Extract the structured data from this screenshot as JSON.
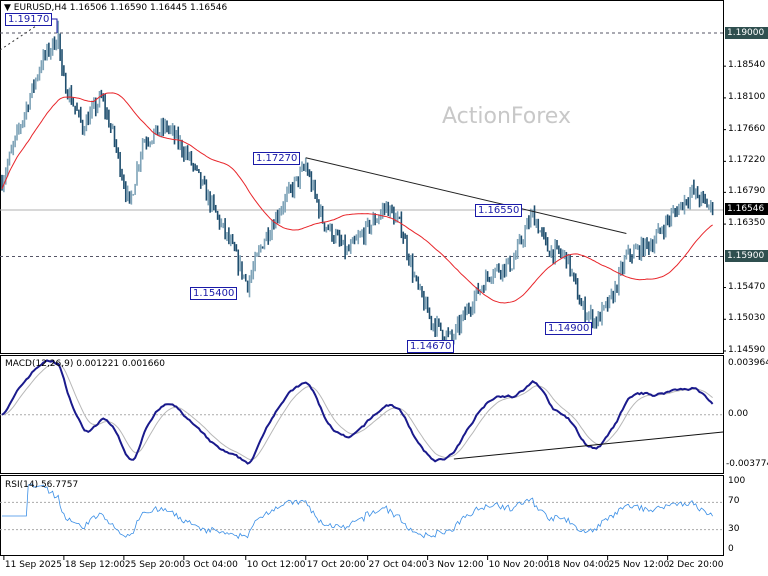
{
  "header": {
    "symbol": "EURUSD,H4",
    "ohlc": "1.16506 1.16590 1.16445 1.16546"
  },
  "watermark": "ActionForex",
  "colors": {
    "bull": "#7fa3b8",
    "bear": "#1f4e6e",
    "ma": "#e8262b",
    "macd": "#1a1a8c",
    "signal": "#b8b8b8",
    "rsi": "#3b8fe6",
    "label_border": "#1a1aa8",
    "level_tag": "#2f4f4f"
  },
  "chart_data": [
    {
      "type": "candlestick",
      "title": "EURUSD,H4",
      "timeframe": "H4",
      "y_ticks": [
        "1.19000",
        "1.18540",
        "1.18100",
        "1.17660",
        "1.17220",
        "1.16790",
        "1.16350",
        "1.15900",
        "1.15470",
        "1.15030",
        "1.14590"
      ],
      "ylim": [
        1.1459,
        1.1925
      ],
      "x_ticks": [
        {
          "bar": 1,
          "label": "11 Sep 2025"
        },
        {
          "bar": 33,
          "label": "18 Sep 12:00"
        },
        {
          "bar": 65,
          "label": "25 Sep 20:00"
        },
        {
          "bar": 97,
          "label": "3 Oct 04:00"
        },
        {
          "bar": 130,
          "label": "10 Oct 12:00"
        },
        {
          "bar": 162,
          "label": "17 Oct 20:00"
        },
        {
          "bar": 195,
          "label": "27 Oct 04:00"
        },
        {
          "bar": 227,
          "label": "3 Nov 12:00"
        },
        {
          "bar": 259,
          "label": "10 Nov 20:00"
        },
        {
          "bar": 291,
          "label": "18 Nov 04:00"
        },
        {
          "bar": 323,
          "label": "25 Nov 12:00"
        },
        {
          "bar": 355,
          "label": "2 Dec 20:00"
        }
      ],
      "approx_close_path": [
        [
          0,
          1.1695
        ],
        [
          21,
          1.186
        ],
        [
          30,
          1.1895
        ],
        [
          32,
          1.184
        ],
        [
          43,
          1.177
        ],
        [
          53,
          1.181
        ],
        [
          59,
          1.176
        ],
        [
          68,
          1.166
        ],
        [
          75,
          1.175
        ],
        [
          88,
          1.177
        ],
        [
          99,
          1.173
        ],
        [
          112,
          1.166
        ],
        [
          123,
          1.16
        ],
        [
          131,
          1.155
        ],
        [
          139,
          1.161
        ],
        [
          149,
          1.166
        ],
        [
          162,
          1.1715
        ],
        [
          171,
          1.164
        ],
        [
          184,
          1.1595
        ],
        [
          205,
          1.166
        ],
        [
          213,
          1.163
        ],
        [
          221,
          1.155
        ],
        [
          229,
          1.15
        ],
        [
          240,
          1.1475
        ],
        [
          251,
          1.153
        ],
        [
          261,
          1.157
        ],
        [
          272,
          1.158
        ],
        [
          283,
          1.165
        ],
        [
          291,
          1.16
        ],
        [
          301,
          1.159
        ],
        [
          309,
          1.152
        ],
        [
          317,
          1.15
        ],
        [
          325,
          1.153
        ],
        [
          333,
          1.159
        ],
        [
          347,
          1.161
        ],
        [
          355,
          1.164
        ],
        [
          368,
          1.168
        ],
        [
          379,
          1.16546
        ]
      ],
      "moving_average": {
        "color": "#e8262b"
      },
      "current_price": "1.16546",
      "levels": [
        "1.19000",
        "1.15900"
      ],
      "annotations": [
        {
          "text": "1.19170",
          "bar": 30,
          "price": 1.1917
        },
        {
          "text": "1.17270",
          "bar": 162,
          "price": 1.1727
        },
        {
          "text": "1.15400",
          "bar": 131,
          "price": 1.154
        },
        {
          "text": "1.16550",
          "bar": 283,
          "price": 1.1655
        },
        {
          "text": "1.14670",
          "bar": 240,
          "price": 1.1467
        },
        {
          "text": "1.14900",
          "bar": 317,
          "price": 1.149
        }
      ],
      "trendline": {
        "from": {
          "bar": 162,
          "price": 1.1727
        },
        "to": {
          "bar": 333,
          "price": 1.1622
        }
      }
    },
    {
      "type": "line",
      "title": "MACD(12,26,9) 0.001221 0.001660",
      "y_ticks": [
        "0.003964",
        "0.00",
        "-0.003774"
      ],
      "ylim": [
        -0.003774,
        0.003964
      ],
      "series": [
        {
          "name": "MACD",
          "last": 0.001221
        },
        {
          "name": "Signal",
          "last": 0.00166
        }
      ],
      "trendline": {
        "from_bar": 241,
        "to_bar": 386
      }
    },
    {
      "type": "line",
      "title": "RSI(14) 56.7757",
      "y_ticks": [
        "100",
        "70",
        "30",
        "0"
      ],
      "ylim": [
        0,
        100
      ],
      "levels": [
        70,
        30
      ],
      "series": [
        {
          "name": "RSI(14)",
          "last": 56.7757
        }
      ]
    }
  ]
}
